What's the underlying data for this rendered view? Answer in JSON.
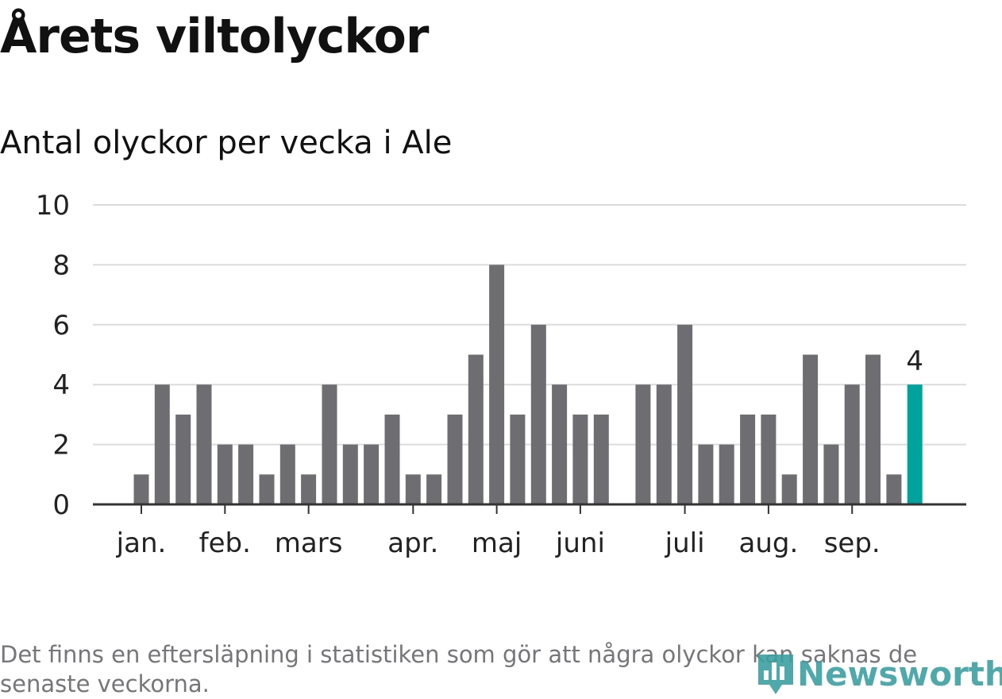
{
  "title": "Årets viltolyckor",
  "subtitle": "Antal olyckor per vecka i Ale",
  "footnote": "Det finns en eftersläpning i statistiken som gör att några olyckor kan saknas de senaste veckorna.",
  "brand": {
    "name": "Newsworthy",
    "icon": "newsworthy-logo-icon",
    "color": "#3c9fa0"
  },
  "colors": {
    "bar": "#6e6d72",
    "highlight": "#00a39b",
    "grid": "#dcdcdc",
    "axis": "#333333"
  },
  "chart_data": {
    "type": "bar",
    "title": "Antal olyckor per vecka i Ale",
    "xlabel": "",
    "ylabel": "",
    "ylim": [
      0,
      10
    ],
    "yticks": [
      "0",
      "2",
      "4",
      "6",
      "8",
      "10"
    ],
    "grid": true,
    "categories": [
      1,
      2,
      3,
      4,
      5,
      6,
      7,
      8,
      9,
      10,
      11,
      12,
      13,
      14,
      15,
      16,
      17,
      18,
      19,
      20,
      21,
      22,
      23,
      24,
      25,
      26,
      27,
      28,
      29,
      30,
      31,
      32,
      33,
      34,
      35,
      36,
      37,
      38
    ],
    "values": [
      1,
      4,
      3,
      4,
      2,
      2,
      1,
      2,
      1,
      4,
      2,
      2,
      3,
      1,
      1,
      3,
      5,
      8,
      3,
      6,
      4,
      3,
      3,
      null,
      4,
      4,
      6,
      2,
      2,
      3,
      3,
      1,
      5,
      2,
      4,
      5,
      1,
      4
    ],
    "highlight_index": 37,
    "highlight_label": "4",
    "month_ticks": [
      {
        "label": "jan.",
        "week": 1
      },
      {
        "label": "feb.",
        "week": 5
      },
      {
        "label": "mars",
        "week": 9
      },
      {
        "label": "apr.",
        "week": 14
      },
      {
        "label": "maj",
        "week": 18
      },
      {
        "label": "juni",
        "week": 22
      },
      {
        "label": "juli",
        "week": 27
      },
      {
        "label": "aug.",
        "week": 31
      },
      {
        "label": "sep.",
        "week": 35
      }
    ]
  }
}
